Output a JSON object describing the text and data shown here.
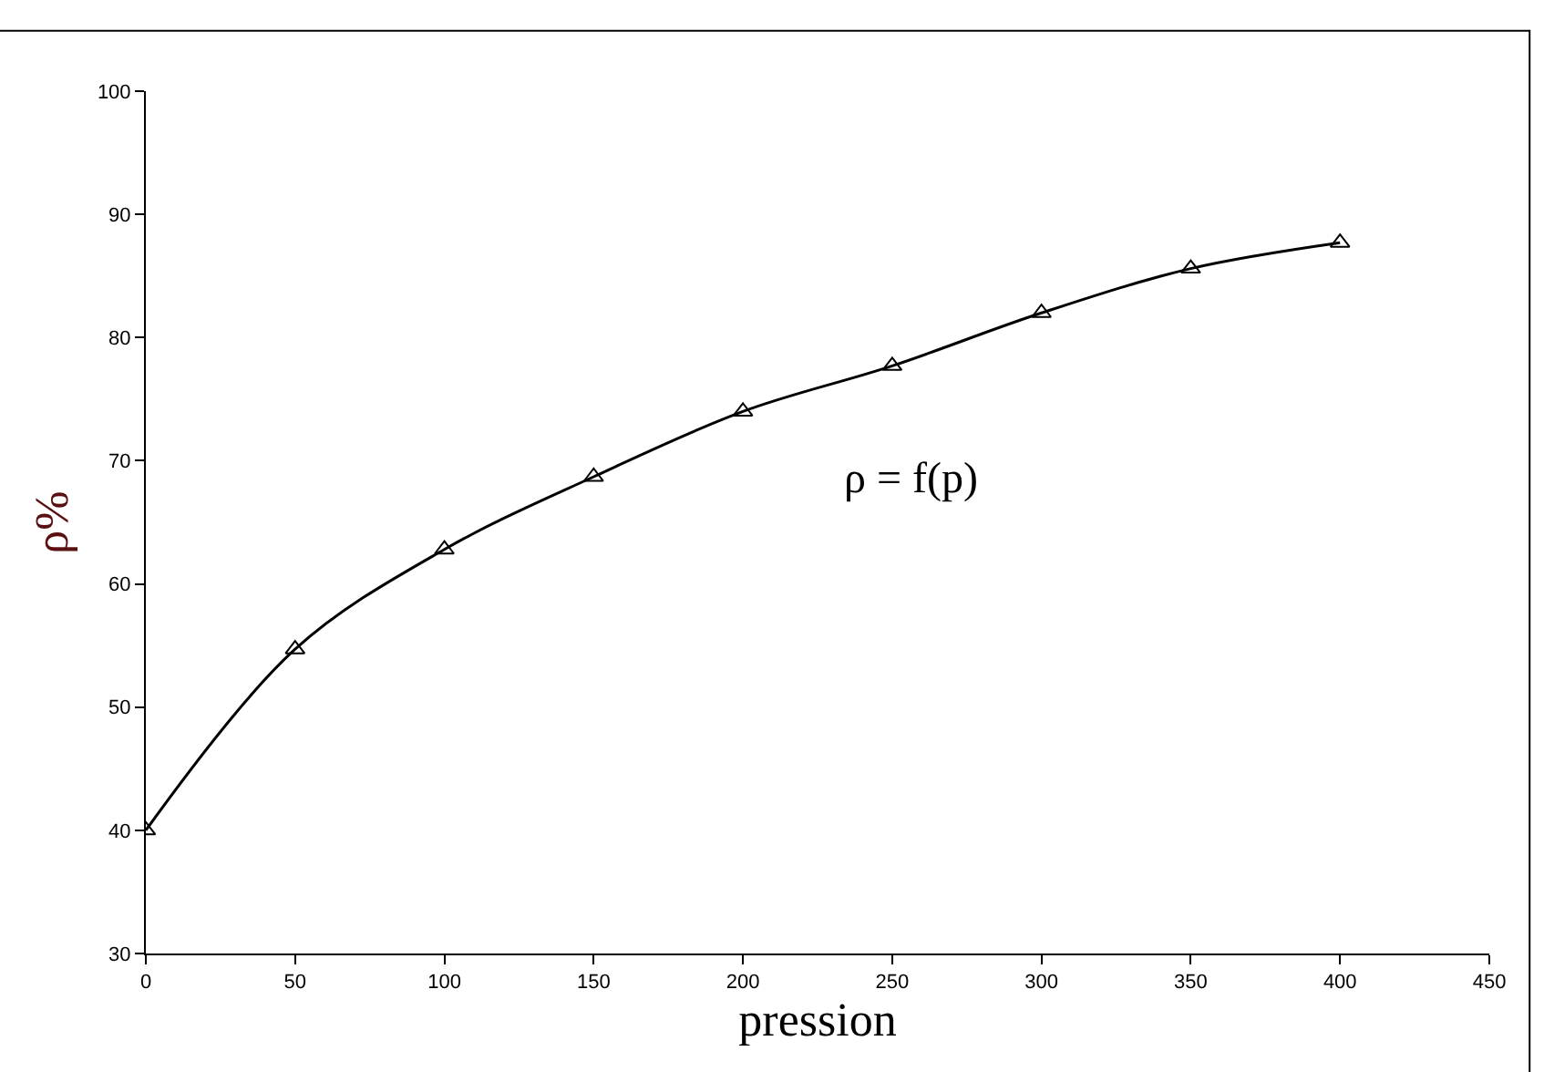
{
  "chart_data": {
    "type": "line",
    "xlabel": "pression",
    "ylabel": "ρ%",
    "x": [
      0,
      50,
      100,
      150,
      200,
      250,
      300,
      350,
      400
    ],
    "series": [
      {
        "color": "#000000",
        "values": [
          40,
          54.7,
          62.8,
          68.7,
          74,
          77.7,
          82,
          85.6,
          87.7
        ]
      }
    ],
    "xlim": [
      0,
      450
    ],
    "xticks": [
      0,
      50,
      100,
      150,
      200,
      250,
      300,
      350,
      400,
      450
    ],
    "ylim": [
      30,
      100
    ],
    "yticks": [
      30,
      40,
      50,
      60,
      70,
      80,
      90,
      100
    ],
    "annotations": [
      "ρ = f(p)"
    ],
    "marker": "triangle",
    "line_style": "solid"
  }
}
